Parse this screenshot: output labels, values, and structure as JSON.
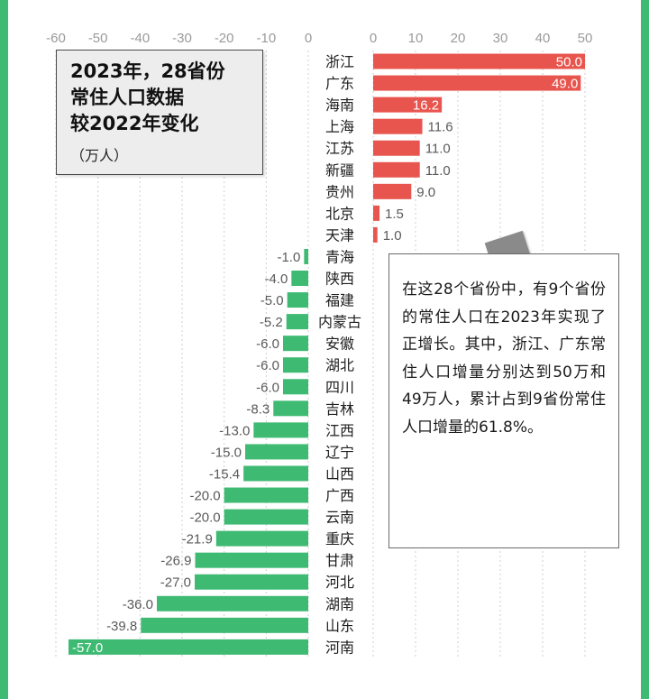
{
  "chart_data": {
    "type": "bar",
    "orientation": "horizontal",
    "title": "2023年，28省份常住人口数据较2022年变化",
    "unit": "（万人）",
    "categories": [
      "浙江",
      "广东",
      "海南",
      "上海",
      "江苏",
      "新疆",
      "贵州",
      "北京",
      "天津",
      "青海",
      "陕西",
      "福建",
      "内蒙古",
      "安徽",
      "湖北",
      "四川",
      "吉林",
      "江西",
      "辽宁",
      "山西",
      "广西",
      "云南",
      "重庆",
      "甘肃",
      "河北",
      "湖南",
      "山东",
      "河南"
    ],
    "values": [
      50.0,
      49.0,
      16.2,
      11.6,
      11.0,
      11.0,
      9.0,
      1.5,
      1.0,
      -1.0,
      -4.0,
      -5.0,
      -5.2,
      -6.0,
      -6.0,
      -6.0,
      -8.3,
      -13.0,
      -15.0,
      -15.4,
      -20.0,
      -20.0,
      -21.9,
      -26.9,
      -27.0,
      -36.0,
      -39.8,
      -57.0
    ],
    "value_labels": [
      "50.0",
      "49.0",
      "16.2",
      "11.6",
      "11.0",
      "11.0",
      "9.0",
      "1.5",
      "1.0",
      "-1.0",
      "-4.0",
      "-5.0",
      "-5.2",
      "-6.0",
      "-6.0",
      "-6.0",
      "-8.3",
      "-13.0",
      "-15.0",
      "-15.4",
      "-20.0",
      "-20.0",
      "-21.9",
      "-26.9",
      "-27.0",
      "-36.0",
      "-39.8",
      "-57.0"
    ],
    "negative_axis_ticks": [
      "-60",
      "-50",
      "-40",
      "-30",
      "-20",
      "-10",
      "0"
    ],
    "positive_axis_ticks": [
      "0",
      "10",
      "20",
      "30",
      "40",
      "50"
    ],
    "negative_range": [
      -60,
      0
    ],
    "positive_range": [
      0,
      50
    ],
    "grid": "dashed vertical",
    "colors": {
      "positive": "#e8554e",
      "negative": "#3fba73"
    }
  },
  "title_box": {
    "title": "2023年，28省份\n常住人口数据\n较2022年变化",
    "unit": "（万人）"
  },
  "annotation": {
    "text": "在这28个省份中，有9个省份的常住人口在2023年实现了正增长。其中，浙江、广东常住人口增量分别达到50万和49万人，累计占到9省份常住人口增量的61.8%。"
  },
  "theme": {
    "border_color": "#3fba73"
  }
}
